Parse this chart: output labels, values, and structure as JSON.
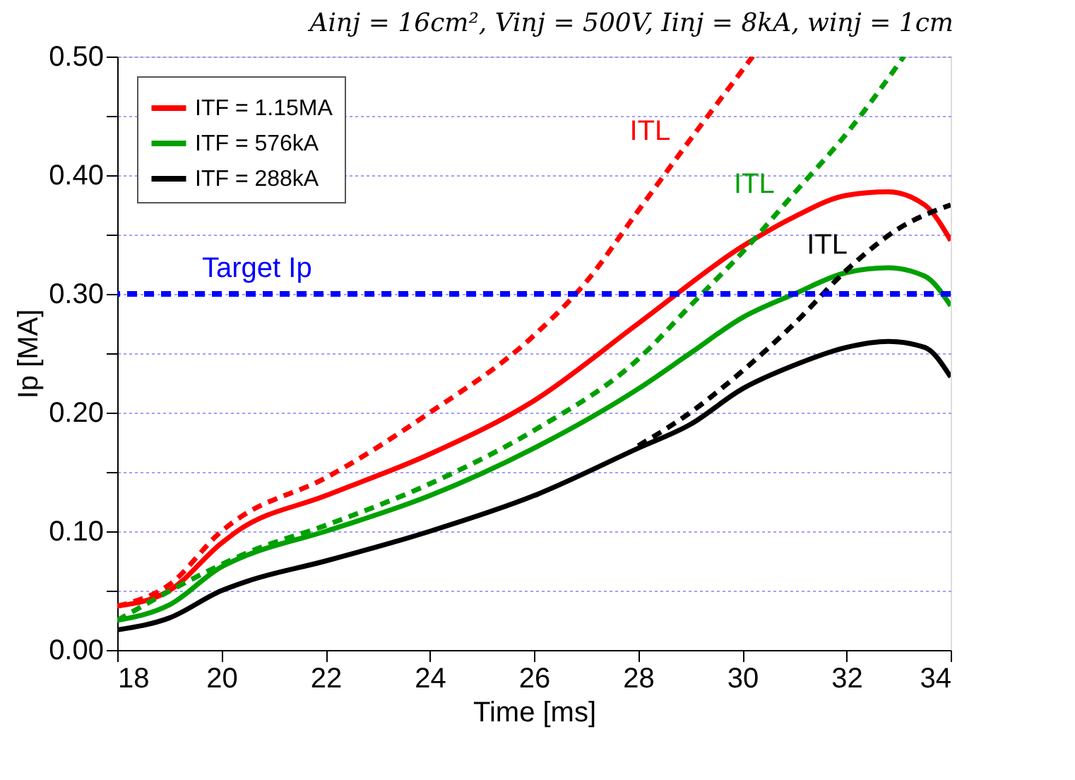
{
  "chart_data": {
    "type": "line",
    "title": "Ainj = 16cm², Vinj = 500V, Iinj = 8kA, winj = 1cm",
    "xlabel": "Time [ms]",
    "ylabel": "Ip [MA]",
    "xlim": [
      18,
      34
    ],
    "xticks": [
      18,
      20,
      22,
      24,
      26,
      28,
      30,
      32,
      34
    ],
    "ylim": [
      0,
      0.5
    ],
    "yticks": [
      {
        "value": 0,
        "label": "0.00"
      },
      {
        "value": 0.05,
        "label": null
      },
      {
        "value": 0.1,
        "label": "0.10"
      },
      {
        "value": 0.15,
        "label": null
      },
      {
        "value": 0.2,
        "label": "0.20"
      },
      {
        "value": 0.25,
        "label": null
      },
      {
        "value": 0.3,
        "label": "0.30"
      },
      {
        "value": 0.35,
        "label": null
      },
      {
        "value": 0.4,
        "label": "0.40"
      },
      {
        "value": 0.45,
        "label": null
      },
      {
        "value": 0.5,
        "label": "0.50"
      }
    ],
    "grid": "y",
    "legend": "top left",
    "marker": "none",
    "series": [
      {
        "name": "ITF = 1.15MA",
        "color": "#ff0000",
        "line_style": "solid",
        "x": [
          18,
          19,
          20,
          20.3,
          22,
          24,
          26,
          28,
          30,
          31,
          32,
          32.8,
          33.5,
          34
        ],
        "values": [
          0.037,
          0.05,
          0.09,
          0.1,
          0.13,
          0.165,
          0.21,
          0.275,
          0.34,
          0.365,
          0.383,
          0.386,
          0.375,
          0.345
        ]
      },
      {
        "name": "ITF = 576kA",
        "color": "#00a000",
        "line_style": "solid",
        "x": [
          18,
          19,
          20,
          20.5,
          22,
          24,
          26,
          28,
          29,
          30,
          31,
          32,
          32.8,
          33.5,
          34
        ],
        "values": [
          0.025,
          0.038,
          0.07,
          0.08,
          0.1,
          0.13,
          0.17,
          0.22,
          0.25,
          0.28,
          0.3,
          0.318,
          0.322,
          0.315,
          0.29
        ]
      },
      {
        "name": "ITF = 288kA",
        "color": "#000000",
        "line_style": "solid",
        "x": [
          18,
          19,
          20,
          20.5,
          22,
          24,
          26,
          28,
          29,
          30,
          31,
          32,
          32.8,
          33.5,
          34
        ],
        "values": [
          0.017,
          0.027,
          0.05,
          0.058,
          0.075,
          0.1,
          0.13,
          0.17,
          0.19,
          0.22,
          0.24,
          0.255,
          0.26,
          0.255,
          0.23
        ]
      },
      {
        "color": "#ff0000",
        "line_style": "dashed",
        "x": [
          18,
          19,
          20,
          20.3,
          22,
          24,
          26,
          27,
          28,
          29,
          30.2
        ],
        "values": [
          0.037,
          0.055,
          0.1,
          0.11,
          0.145,
          0.2,
          0.265,
          0.31,
          0.37,
          0.43,
          0.5
        ]
      },
      {
        "color": "#00a000",
        "line_style": "dashed",
        "x": [
          18,
          20,
          20.5,
          22,
          24,
          26,
          28,
          29,
          30,
          31,
          32,
          33.1
        ],
        "values": [
          0.025,
          0.072,
          0.082,
          0.105,
          0.14,
          0.185,
          0.245,
          0.29,
          0.335,
          0.385,
          0.435,
          0.5
        ]
      },
      {
        "color": "#000000",
        "line_style": "dashed",
        "x": [
          28,
          29,
          30,
          31,
          32,
          33,
          34
        ],
        "values": [
          0.172,
          0.2,
          0.235,
          0.275,
          0.32,
          0.355,
          0.375
        ]
      }
    ],
    "ref_lines": [
      {
        "axis": "y",
        "value": 0.3,
        "label": "Target Ip",
        "color": "#0000ff",
        "line_style": "dashed"
      }
    ],
    "annotations": [
      {
        "text": "ITL",
        "x": 29,
        "y": 0.43
      },
      {
        "text": "ITL",
        "x": 31,
        "y": 0.385
      },
      {
        "text": "ITL",
        "x": 32.4,
        "y": 0.334
      }
    ]
  }
}
